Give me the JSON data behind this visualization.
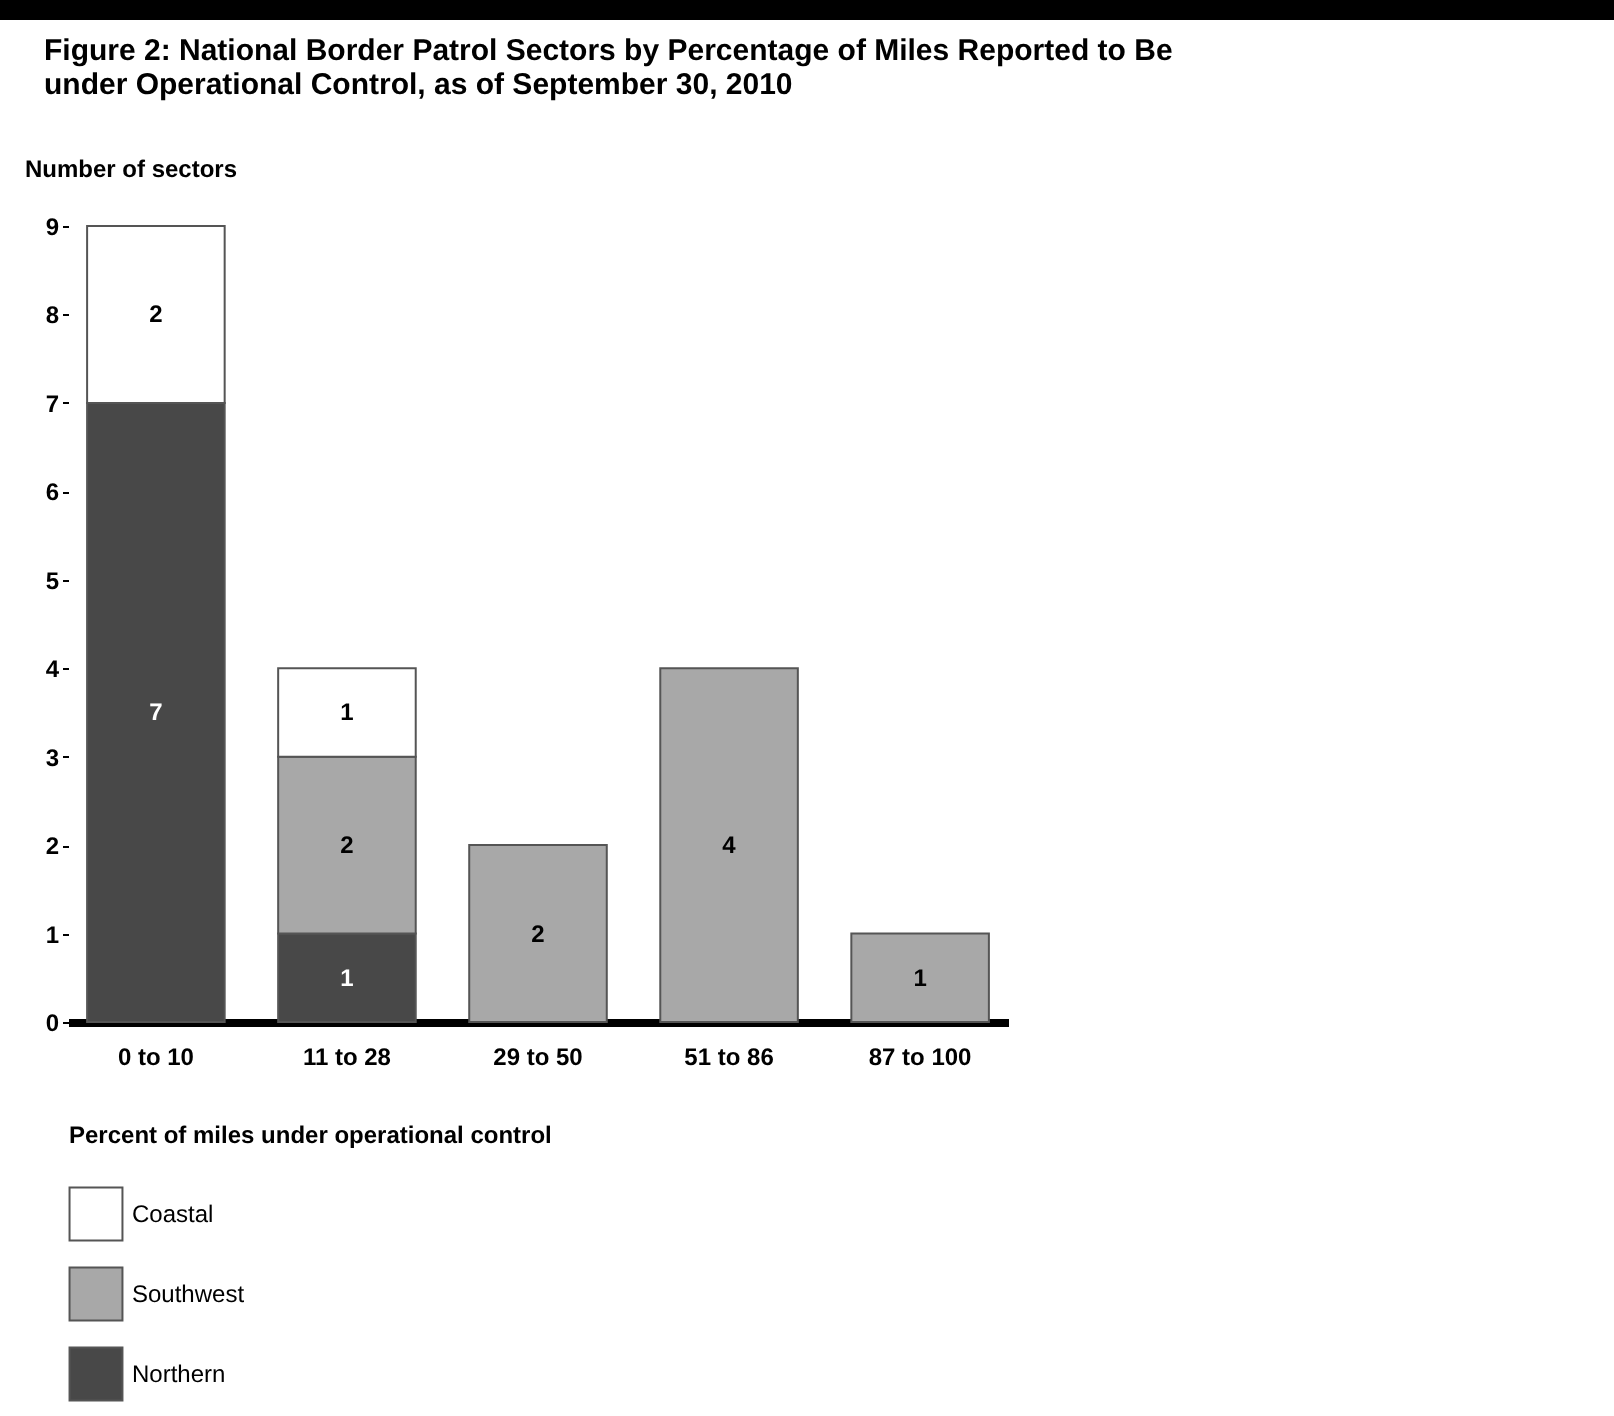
{
  "chart_data": {
    "type": "bar",
    "title": "Figure 2: National Border Patrol Sectors by Percentage of Miles Reported to Be under Operational Control, as of September 30, 2010",
    "ylabel": "Number of sectors",
    "xlabel": "Percent of miles under operational control",
    "categories": [
      "0 to 10",
      "11 to 28",
      "29 to 50",
      "51 to 86",
      "87 to 100"
    ],
    "stacked": true,
    "data_labels": true,
    "legend": "bottom left",
    "grid": false,
    "ylim": [
      0,
      9
    ],
    "yticks": [
      0,
      1,
      2,
      3,
      4,
      5,
      6,
      7,
      8,
      9
    ],
    "series": [
      {
        "name": "Northern",
        "color": "#484848",
        "values": [
          7,
          1,
          null,
          null,
          null
        ]
      },
      {
        "name": "Southwest",
        "color": "#a8a8a8",
        "values": [
          null,
          2,
          2,
          4,
          1
        ]
      },
      {
        "name": "Coastal",
        "color": "#ffffff",
        "values": [
          2,
          1,
          null,
          null,
          null
        ]
      }
    ]
  }
}
